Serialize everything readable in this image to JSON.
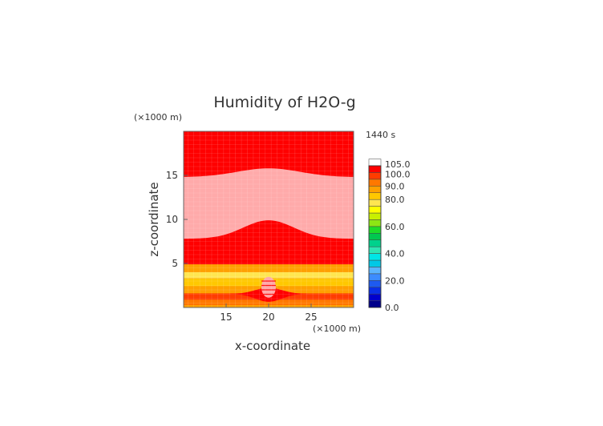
{
  "chart_data": {
    "type": "heatmap",
    "title": "Humidity of H2O-g",
    "time_label": "1440 s",
    "xlabel": "x-coordinate",
    "ylabel": "z-coordinate",
    "x_unit": "(×1000 m)",
    "y_unit": "(×1000 m)",
    "xlim": [
      10,
      30
    ],
    "ylim": [
      0,
      20
    ],
    "x_ticks": [
      15,
      20,
      25
    ],
    "y_ticks": [
      5,
      10,
      15
    ],
    "colorbar": {
      "min": 0,
      "max": 105,
      "step": 5,
      "tick_values": [
        0,
        20,
        40,
        60,
        80,
        90,
        100,
        105
      ],
      "tick_labels": [
        "0.0",
        "20.0",
        "40.0",
        "60.0",
        "80.0",
        "90.0",
        "100.0",
        "105.0"
      ],
      "colors": [
        "#00008b",
        "#0000cd",
        "#0a2fe6",
        "#1e5af0",
        "#3c8cff",
        "#5ab4ff",
        "#00c8e6",
        "#00e6e6",
        "#2de6b4",
        "#00d28c",
        "#00c850",
        "#1edc28",
        "#8ce614",
        "#c8f000",
        "#ffff00",
        "#ffe650",
        "#ffc800",
        "#ffa000",
        "#ff7800",
        "#ff3c00",
        "#ff0000",
        "#ffffff"
      ]
    },
    "field_description_layers": [
      {
        "z_range": [
          0,
          0.3
        ],
        "value": 85
      },
      {
        "z_range": [
          0.3,
          0.9
        ],
        "value": 90
      },
      {
        "z_range": [
          0.9,
          1.6
        ],
        "value": 95
      },
      {
        "z_range": [
          1.6,
          2.4
        ],
        "value": 85
      },
      {
        "z_range": [
          2.4,
          3.3
        ],
        "value": 80
      },
      {
        "z_range": [
          3.3,
          4.0
        ],
        "value": 75
      },
      {
        "z_range": [
          4.0,
          4.9
        ],
        "value": 85
      },
      {
        "z_range": [
          4.9,
          20
        ],
        "value": 100
      }
    ]
  },
  "colors": {
    "saturated": "#ff0000",
    "supersaturated": "#ffaaaa",
    "background": "#ffffff"
  }
}
